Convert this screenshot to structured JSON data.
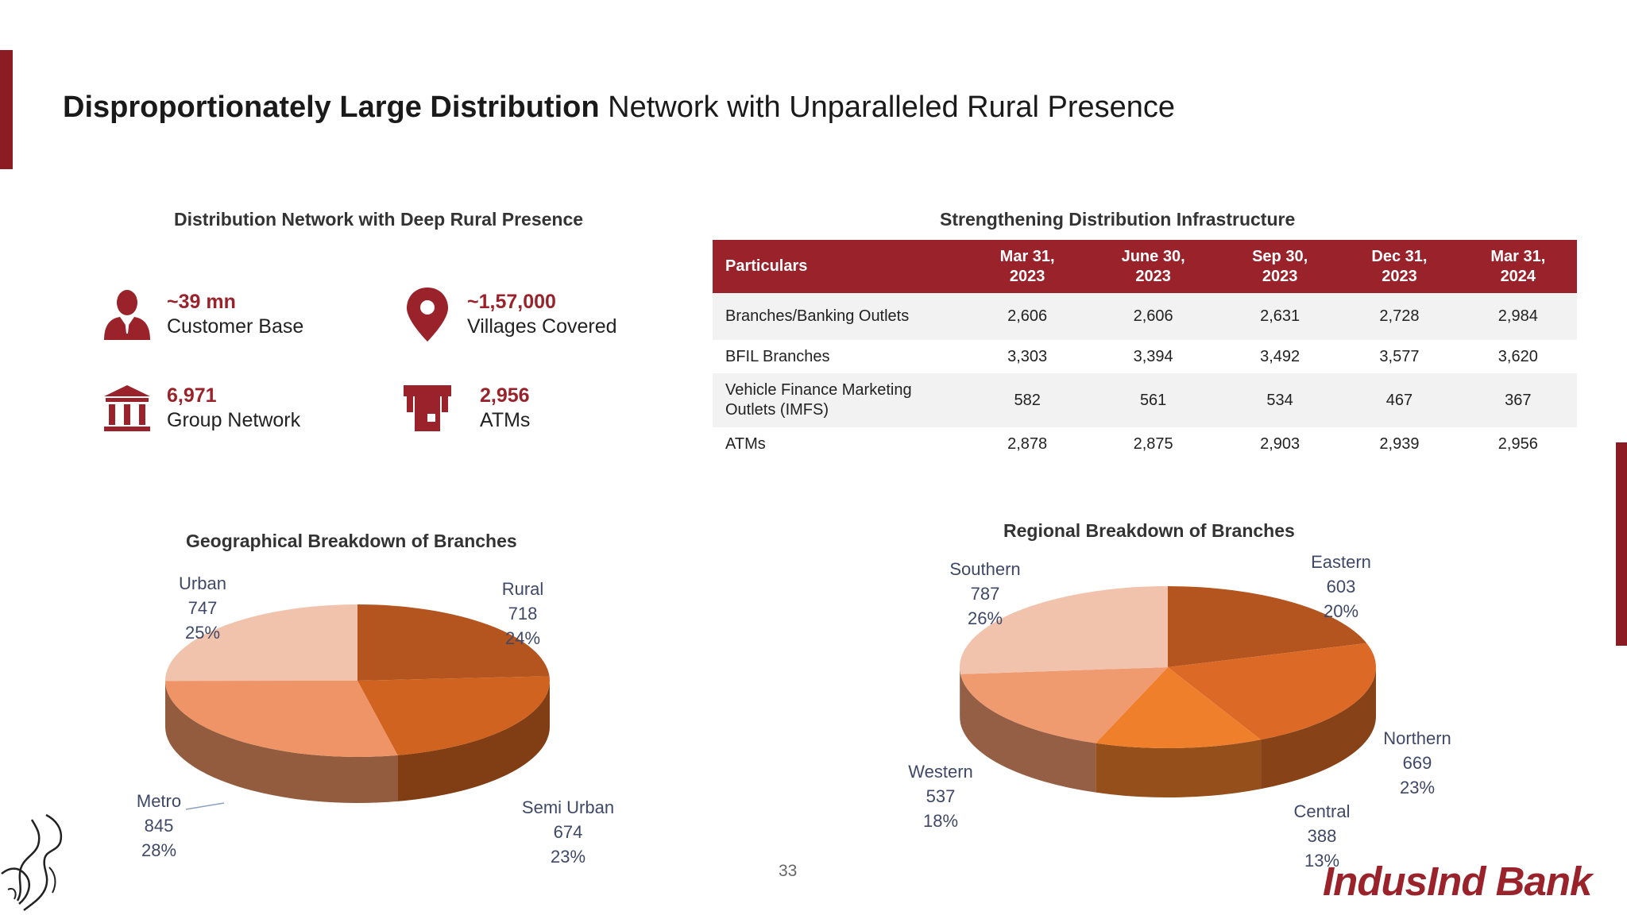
{
  "title": {
    "bold": "Disproportionately Large Distribution",
    "rest": " Network with Unparalleled Rural Presence"
  },
  "left_section_title": "Distribution Network with Deep Rural Presence",
  "right_section_title": "Strengthening Distribution Infrastructure",
  "kpis": [
    {
      "value": "~39 mn",
      "label": "Customer Base",
      "icon": "person-icon"
    },
    {
      "value": "~1,57,000",
      "label": "Villages Covered",
      "icon": "map-pin-icon"
    },
    {
      "value": "6,971",
      "label": "Group Network",
      "icon": "bank-building-icon"
    },
    {
      "value": "2,956",
      "label": "ATMs",
      "icon": "atm-icon"
    }
  ],
  "table": {
    "headers": [
      "Particulars",
      "Mar 31,\n2023",
      "June 30,\n2023",
      "Sep 30,\n2023",
      "Dec 31,\n2023",
      "Mar 31,\n2024"
    ],
    "rows": [
      [
        "Branches/Banking Outlets",
        "2,606",
        "2,606",
        "2,631",
        "2,728",
        "2,984"
      ],
      [
        "BFIL Branches",
        "3,303",
        "3,394",
        "3,492",
        "3,577",
        "3,620"
      ],
      [
        "Vehicle Finance Marketing Outlets (IMFS)",
        "582",
        "561",
        "534",
        "467",
        "367"
      ],
      [
        "ATMs",
        "2,878",
        "2,875",
        "2,903",
        "2,939",
        "2,956"
      ]
    ]
  },
  "chart_data": [
    {
      "type": "pie",
      "title": "Geographical Breakdown of Branches",
      "slices": [
        {
          "label": "Rural",
          "value": 718,
          "percent": "24%",
          "color": "#b4541f"
        },
        {
          "label": "Semi Urban",
          "value": 674,
          "percent": "23%",
          "color": "#d0631f"
        },
        {
          "label": "Metro",
          "value": 845,
          "percent": "28%",
          "color": "#ee9466"
        },
        {
          "label": "Urban",
          "value": 747,
          "percent": "25%",
          "color": "#f2c3ac"
        }
      ]
    },
    {
      "type": "pie",
      "title": "Regional Breakdown of Branches",
      "slices": [
        {
          "label": "Eastern",
          "value": 603,
          "percent": "20%",
          "color": "#b4541f"
        },
        {
          "label": "Northern",
          "value": 669,
          "percent": "23%",
          "color": "#dc6a26"
        },
        {
          "label": "Central",
          "value": 388,
          "percent": "13%",
          "color": "#f07f2c"
        },
        {
          "label": "Western",
          "value": 537,
          "percent": "18%",
          "color": "#f09a70"
        },
        {
          "label": "Southern",
          "value": 787,
          "percent": "26%",
          "color": "#f2c3ac"
        }
      ]
    }
  ],
  "page_number": "33",
  "logo": "IndusInd Bank"
}
